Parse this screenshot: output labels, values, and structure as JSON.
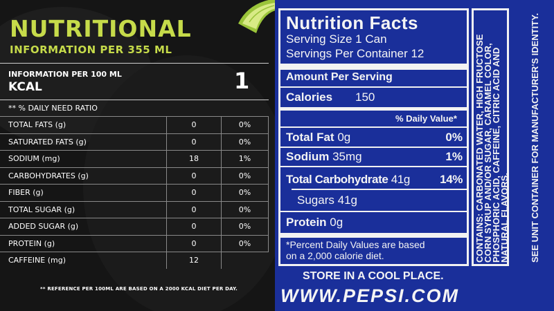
{
  "left_label": {
    "title": "NUTRITIONAL",
    "subtitle": "INFORMATION PER 355 ML",
    "info_per": "INFORMATION PER 100 ML",
    "kcal_label": "KCAL",
    "kcal_value": "1",
    "ratio_label": "** % DAILY NEED RATIO",
    "rows": [
      {
        "name": "TOTAL FATS (g)",
        "value": "0",
        "pct": "0%"
      },
      {
        "name": "SATURATED FATS (g)",
        "value": "0",
        "pct": "0%"
      },
      {
        "name": "SODIUM (mg)",
        "value": "18",
        "pct": "1%"
      },
      {
        "name": "CARBOHYDRATES (g)",
        "value": "0",
        "pct": "0%"
      },
      {
        "name": "FIBER (g)",
        "value": "0",
        "pct": "0%"
      },
      {
        "name": "TOTAL SUGAR (g)",
        "value": "0",
        "pct": "0%"
      },
      {
        "name": "ADDED SUGAR (g)",
        "value": "0",
        "pct": "0%"
      },
      {
        "name": "PROTEIN (g)",
        "value": "0",
        "pct": "0%"
      },
      {
        "name": "CAFFEINE (mg)",
        "value": "12",
        "pct": ""
      }
    ],
    "footnote": "** REFERENCE PER 100ML ARE BASED ON A 2000 KCAL DIET PER DAY.",
    "accent_color": "#c6db4a"
  },
  "right_label": {
    "title": "Nutrition Facts",
    "serving_size": "Serving Size 1 Can",
    "servings_per": "Servings Per Container 12",
    "amount_per": "Amount Per Serving",
    "calories_label": "Calories",
    "calories_value": "150",
    "daily_value_header": "% Daily Value*",
    "rows": [
      {
        "name": "Total Fat",
        "amount": "0g",
        "pct": "0%"
      },
      {
        "name": "Sodium",
        "amount": "35mg",
        "pct": "1%"
      },
      {
        "name": "Total Carbohydrate",
        "amount": "41g",
        "pct": "14%"
      },
      {
        "name": "Sugars",
        "amount": "41g",
        "pct": ""
      },
      {
        "name": "Protein",
        "amount": "0g",
        "pct": ""
      }
    ],
    "footnote_line1": "*Percent Daily Values are based",
    "footnote_line2": "on a 2,000 calorie diet.",
    "ingredients_line1": "CONTAINS: CARBONATED WATER, HIGH FRUCTOSE",
    "ingredients_line2": "CORN SYRUP AND/OR SUGAR, CARAMEL COLOR,",
    "ingredients_line3": "PHOSPHORIC ACID, CAFFEINE, CITRIC ACID AND",
    "ingredients_line4": "NATURAL FLAVORS.",
    "identity_note": "SEE UNIT CONTAINER FOR MANUFACTURER'S IDENTITY.",
    "store_note": "STORE IN A COOL PLACE.",
    "website": "WWW.PEPSI.COM",
    "background_color": "#1a2f9a"
  }
}
